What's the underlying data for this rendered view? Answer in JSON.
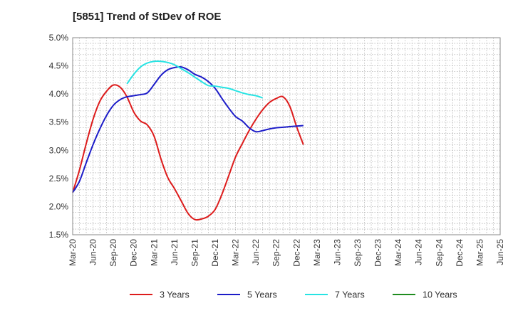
{
  "chart_data": {
    "type": "line",
    "title": "[5851]  Trend of StDev of ROE",
    "xlabel": "",
    "ylabel": "",
    "x_ticks": [
      "Mar-20",
      "Jun-20",
      "Sep-20",
      "Dec-20",
      "Mar-21",
      "Jun-21",
      "Sep-21",
      "Dec-21",
      "Mar-22",
      "Jun-22",
      "Sep-22",
      "Dec-22",
      "Mar-23",
      "Jun-23",
      "Sep-23",
      "Dec-23",
      "Mar-24",
      "Jun-24",
      "Sep-24",
      "Dec-24",
      "Mar-25",
      "Jun-25"
    ],
    "y_ticks": [
      "1.5%",
      "2.0%",
      "2.5%",
      "3.0%",
      "3.5%",
      "4.0%",
      "4.5%",
      "5.0%"
    ],
    "ylim": [
      1.5,
      5.0
    ],
    "grid": true,
    "legend_position": "bottom",
    "series": [
      {
        "name": "3 Years",
        "color": "#dd1c1c",
        "values": [
          2.25,
          2.65,
          3.12,
          3.55,
          3.87,
          4.05,
          4.16,
          4.12,
          3.95,
          3.68,
          3.52,
          3.45,
          3.25,
          2.85,
          2.52,
          2.32,
          2.1,
          1.88,
          1.77,
          1.78,
          1.83,
          1.95,
          2.22,
          2.55,
          2.88,
          3.12,
          3.35,
          3.55,
          3.72,
          3.85,
          3.92,
          3.95,
          3.78,
          3.42,
          3.1
        ]
      },
      {
        "name": "5 Years",
        "color": "#1c1cc8",
        "values": [
          2.25,
          2.45,
          2.78,
          3.1,
          3.38,
          3.62,
          3.8,
          3.9,
          3.95,
          3.97,
          3.99,
          4.02,
          4.17,
          4.33,
          4.43,
          4.47,
          4.48,
          4.43,
          4.35,
          4.3,
          4.22,
          4.1,
          3.92,
          3.75,
          3.6,
          3.52,
          3.4,
          3.33,
          3.35,
          3.38,
          3.4,
          3.41,
          3.42,
          3.43,
          3.44
        ]
      },
      {
        "name": "7 Years",
        "color": "#27e3e3",
        "x_offset": 8,
        "values": [
          4.18,
          4.35,
          4.48,
          4.55,
          4.58,
          4.58,
          4.56,
          4.52,
          4.45,
          4.38,
          4.3,
          4.22,
          4.15,
          4.14,
          4.12,
          4.1,
          4.06,
          4.02,
          3.99,
          3.97,
          3.93
        ]
      },
      {
        "name": "10 Years",
        "color": "#1f8c1f",
        "values": []
      }
    ]
  }
}
